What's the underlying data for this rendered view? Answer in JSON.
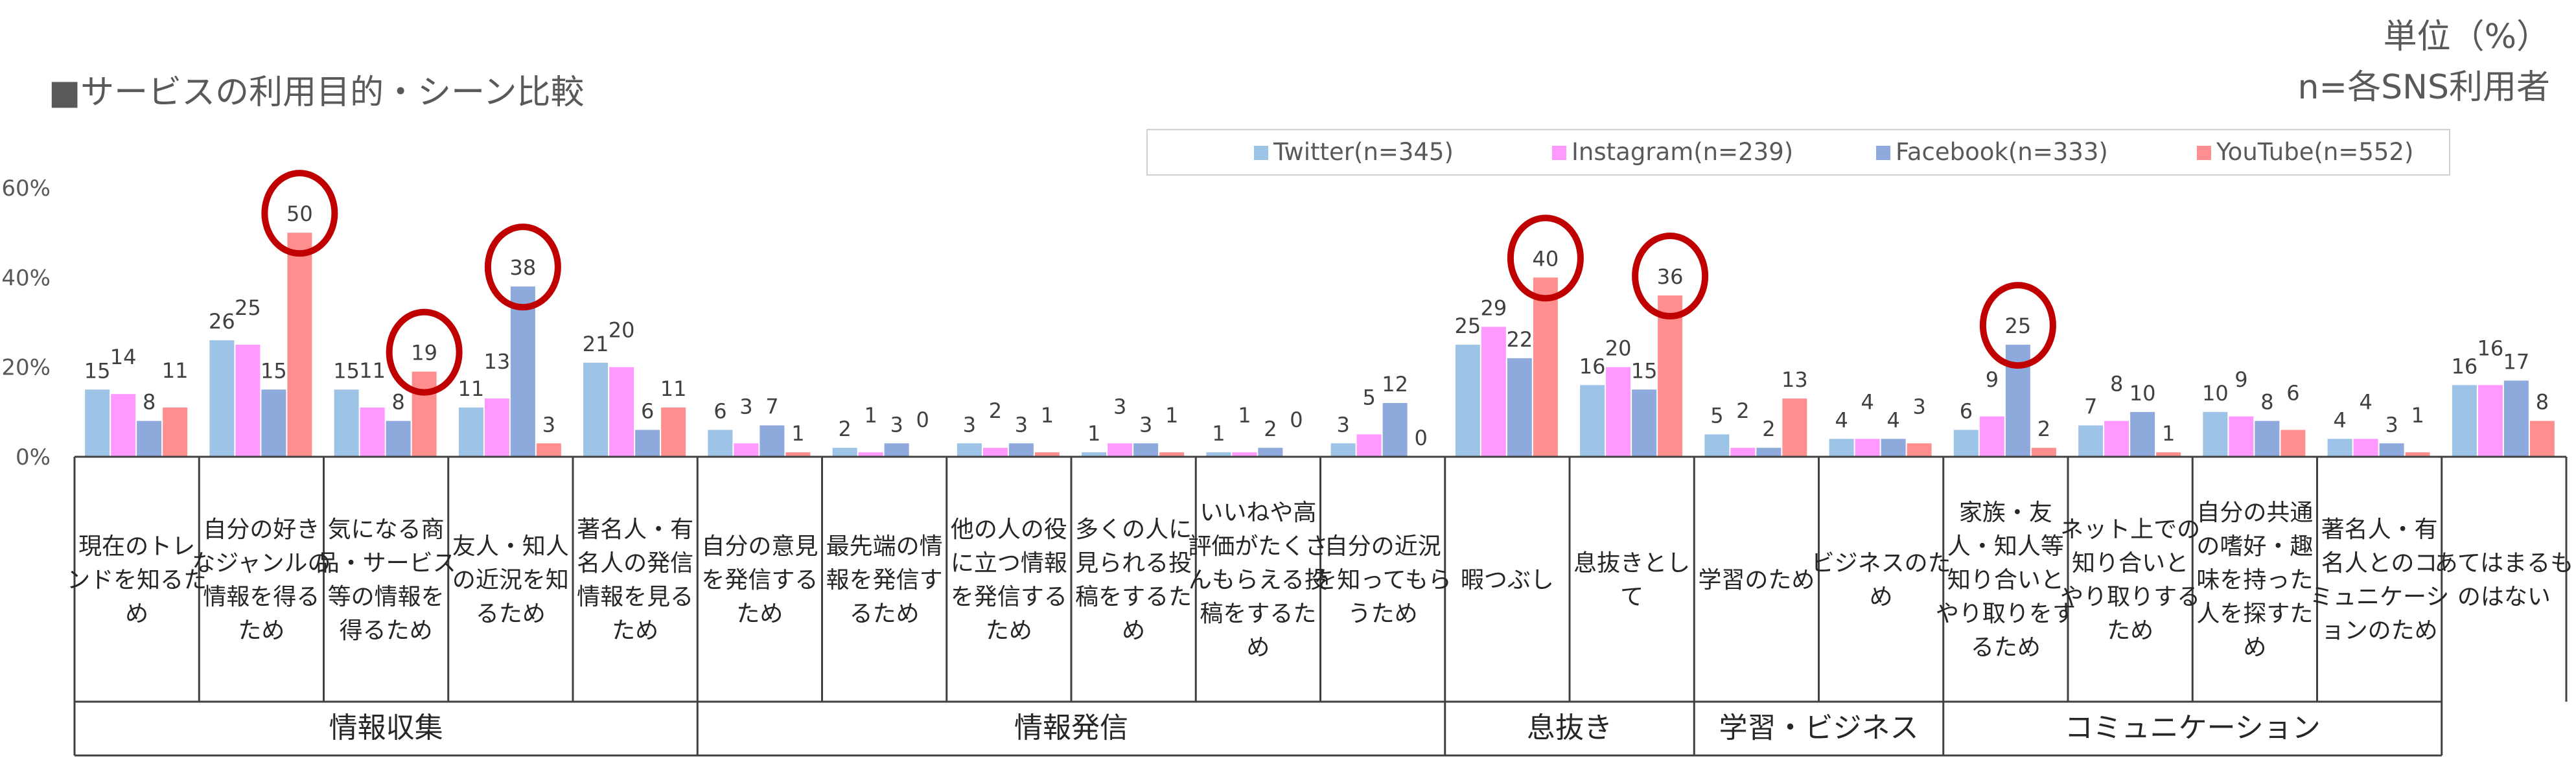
{
  "title": "■サービスの利用目的・シーン比較",
  "unit": "単位（%）",
  "sample": "n=各SNS利用者",
  "colors": {
    "Twitter": "#9dc3e6",
    "Instagram": "#ff99ff",
    "Facebook": "#8ea9db",
    "YouTube": "#ff8f8f",
    "highlight": "#c00000"
  },
  "chart_data": {
    "type": "bar",
    "ylim": [
      0,
      60
    ],
    "yticks": [
      "0%",
      "20%",
      "40%",
      "60%"
    ],
    "series": [
      {
        "name": "Twitter(n=345)",
        "values": [
          15,
          26,
          15,
          11,
          21,
          6,
          2,
          3,
          1,
          1,
          3,
          25,
          16,
          5,
          4,
          6,
          7,
          10,
          4,
          16
        ]
      },
      {
        "name": "Instagram(n=239)",
        "values": [
          14,
          25,
          11,
          13,
          20,
          3,
          1,
          2,
          3,
          1,
          5,
          29,
          20,
          2,
          4,
          9,
          8,
          9,
          4,
          16
        ]
      },
      {
        "name": "Facebook(n=333)",
        "values": [
          8,
          15,
          8,
          38,
          6,
          7,
          3,
          3,
          3,
          2,
          12,
          22,
          15,
          2,
          4,
          25,
          10,
          8,
          3,
          17
        ]
      },
      {
        "name": "YouTube(n=552)",
        "values": [
          11,
          50,
          19,
          3,
          11,
          1,
          0,
          1,
          1,
          0,
          0,
          40,
          36,
          13,
          3,
          2,
          1,
          6,
          1,
          8
        ]
      }
    ],
    "categories": [
      [
        "現在のトレ",
        "ンドを知るた",
        "め"
      ],
      [
        "自分の好き",
        "なジャンルの",
        "情報を得る",
        "ため"
      ],
      [
        "気になる商",
        "品・サービス",
        "等の情報を",
        "得るため"
      ],
      [
        "友人・知人",
        "の近況を知",
        "るため"
      ],
      [
        "著名人・有",
        "名人の発信",
        "情報を見る",
        "ため"
      ],
      [
        "自分の意見",
        "を発信する",
        "ため"
      ],
      [
        "最先端の情",
        "報を発信す",
        "るため"
      ],
      [
        "他の人の役",
        "に立つ情報",
        "を発信する",
        "ため"
      ],
      [
        "多くの人に",
        "見られる投",
        "稿をするた",
        "め"
      ],
      [
        "いいねや高",
        "評価がたくさ",
        "んもらえる投",
        "稿をするた",
        "め"
      ],
      [
        "自分の近況",
        "を知ってもら",
        "うため"
      ],
      [
        "暇つぶし"
      ],
      [
        "息抜きとし",
        "て"
      ],
      [
        "学習のため"
      ],
      [
        "ビジネスのた",
        "め"
      ],
      [
        "家族・友",
        "人・知人等",
        "知り合いと",
        "やり取りをす",
        "るため"
      ],
      [
        "ネット上での",
        "知り合いと",
        "やり取りする",
        "ため"
      ],
      [
        "自分の共通",
        "の嗜好・趣",
        "味を持った",
        "人を探すた",
        "め"
      ],
      [
        "著名人・有",
        "名人とのコ",
        "ミュニケーシ",
        "ョンのため"
      ],
      [
        "あてはまるも",
        "のはない"
      ]
    ],
    "groups": [
      {
        "label": "情報収集",
        "start": 0,
        "end": 4
      },
      {
        "label": "情報発信",
        "start": 5,
        "end": 10
      },
      {
        "label": "息抜き",
        "start": 11,
        "end": 12
      },
      {
        "label": "学習・ビジネス",
        "start": 13,
        "end": 14
      },
      {
        "label": "コミュニケーション",
        "start": 15,
        "end": 18
      }
    ],
    "highlights": [
      {
        "category": 1,
        "series": 3
      },
      {
        "category": 2,
        "series": 3
      },
      {
        "category": 3,
        "series": 2
      },
      {
        "category": 11,
        "series": 3
      },
      {
        "category": 12,
        "series": 3
      },
      {
        "category": 15,
        "series": 2
      }
    ],
    "legend_position": "top-right"
  }
}
